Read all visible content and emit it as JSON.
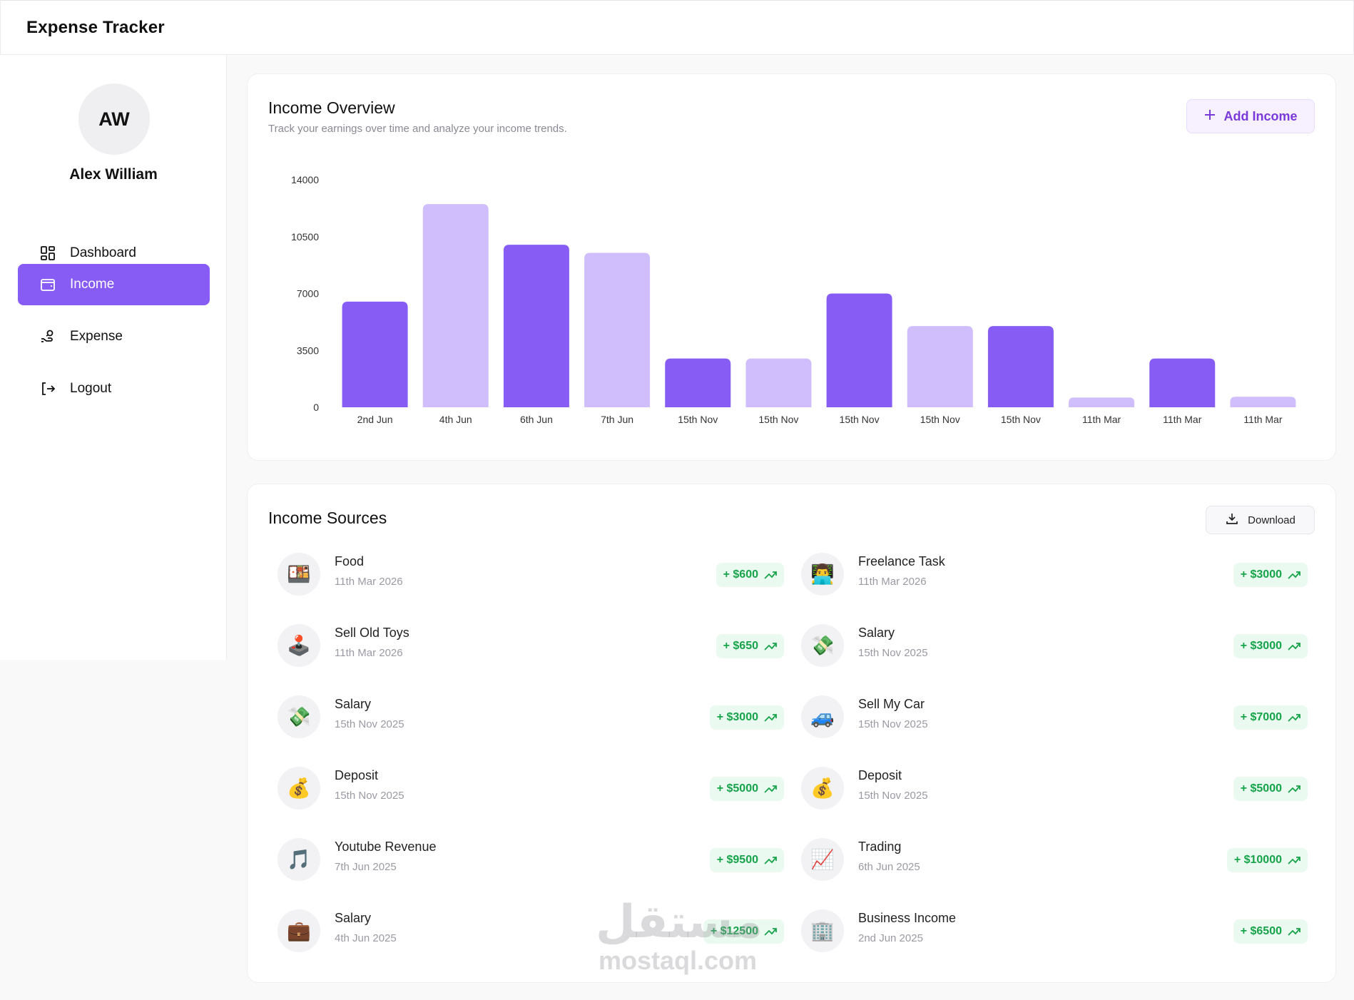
{
  "app": {
    "title": "Expense Tracker"
  },
  "user": {
    "initials": "AW",
    "name": "Alex William"
  },
  "nav": [
    {
      "label": "Dashboard",
      "icon": "grid-icon",
      "active": false
    },
    {
      "label": "Income",
      "icon": "wallet-icon",
      "active": true
    },
    {
      "label": "Expense",
      "icon": "hand-coins-icon",
      "active": false
    },
    {
      "label": "Logout",
      "icon": "logout-icon",
      "active": false
    }
  ],
  "overview": {
    "title": "Income Overview",
    "subtitle": "Track your earnings over time and analyze your income trends.",
    "add_label": "Add Income"
  },
  "chart_data": {
    "type": "bar",
    "title": "",
    "categories": [
      "2nd Jun",
      "4th Jun",
      "6th Jun",
      "7th Jun",
      "15th Nov",
      "15th Nov",
      "15th Nov",
      "15th Nov",
      "15th Nov",
      "11th Mar",
      "11th Mar",
      "11th Mar"
    ],
    "values": [
      6500,
      12500,
      10000,
      9500,
      3000,
      3000,
      7000,
      5000,
      5000,
      600,
      3000,
      650
    ],
    "yticks": [
      0,
      3500,
      7000,
      10500,
      14000
    ],
    "ylim": [
      0,
      14000
    ],
    "colors": [
      "#875cf5",
      "#cfbefb"
    ],
    "xlabel": "",
    "ylabel": ""
  },
  "sources": {
    "title": "Income Sources",
    "download_label": "Download",
    "items": [
      {
        "name": "Food",
        "date": "11th Mar 2026",
        "amount": "+ $600",
        "emoji": "🍱",
        "icon": "bento-icon"
      },
      {
        "name": "Freelance Task",
        "date": "11th Mar 2026",
        "amount": "+ $3000",
        "emoji": "👨‍💻",
        "icon": "technologist-icon"
      },
      {
        "name": "Sell Old Toys",
        "date": "11th Mar 2026",
        "amount": "+ $650",
        "emoji": "🕹️",
        "icon": "joystick-icon"
      },
      {
        "name": "Salary",
        "date": "15th Nov 2025",
        "amount": "+ $3000",
        "emoji": "💸",
        "icon": "money-wings-icon"
      },
      {
        "name": "Salary",
        "date": "15th Nov 2025",
        "amount": "+ $3000",
        "emoji": "💸",
        "icon": "money-wings-icon"
      },
      {
        "name": "Sell My Car",
        "date": "15th Nov 2025",
        "amount": "+ $7000",
        "emoji": "🚙",
        "icon": "car-icon"
      },
      {
        "name": "Deposit",
        "date": "15th Nov 2025",
        "amount": "+ $5000",
        "emoji": "💰",
        "icon": "money-bag-icon"
      },
      {
        "name": "Deposit",
        "date": "15th Nov 2025",
        "amount": "+ $5000",
        "emoji": "💰",
        "icon": "money-bag-icon"
      },
      {
        "name": "Youtube Revenue",
        "date": "7th Jun 2025",
        "amount": "+ $9500",
        "emoji": "🎵",
        "icon": "music-note-icon"
      },
      {
        "name": "Trading",
        "date": "6th Jun 2025",
        "amount": "+ $10000",
        "emoji": "📈",
        "icon": "chart-up-icon"
      },
      {
        "name": "Salary",
        "date": "4th Jun 2025",
        "amount": "+ $12500",
        "emoji": "💼",
        "icon": "briefcase-icon"
      },
      {
        "name": "Business Income",
        "date": "2nd Jun 2025",
        "amount": "+ $6500",
        "emoji": "🏢",
        "icon": "office-building-icon"
      }
    ]
  },
  "watermark": {
    "arabic": "مستقل",
    "latin": "mostaql.com"
  }
}
